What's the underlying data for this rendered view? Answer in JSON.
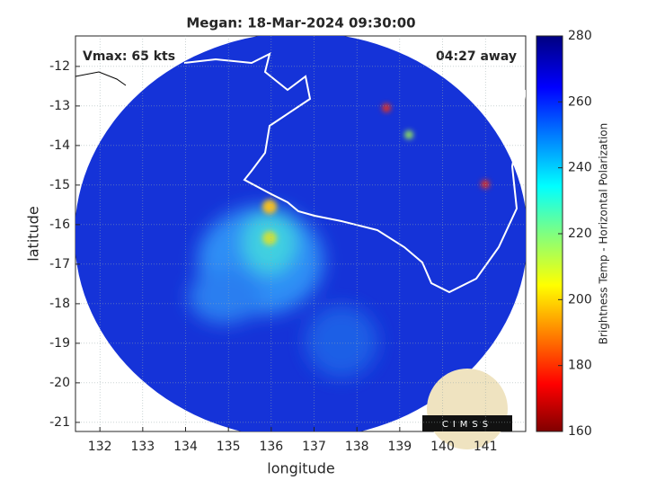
{
  "title": "Megan: 18-Mar-2024 09:30:00",
  "annotations": {
    "vmax": "Vmax: 65 kts",
    "time_away": "04:27 away"
  },
  "map": {
    "xlabel": "longitude",
    "ylabel": "latitude",
    "xlim": [
      131.43,
      141.94
    ],
    "xticks": [
      132,
      133,
      134,
      135,
      136,
      137,
      138,
      139,
      140,
      141
    ],
    "ylim": [
      -21.23,
      -11.23
    ],
    "yticks": [
      -21,
      -20,
      -19,
      -18,
      -17,
      -16,
      -15,
      -14,
      -13,
      -12
    ]
  },
  "colorbar": {
    "label": "Brightness Temp - Horizontal Polarization",
    "lim": [
      160,
      280
    ],
    "ticks": [
      160,
      180,
      200,
      220,
      240,
      260,
      280
    ]
  },
  "logo": "CIMSS"
}
